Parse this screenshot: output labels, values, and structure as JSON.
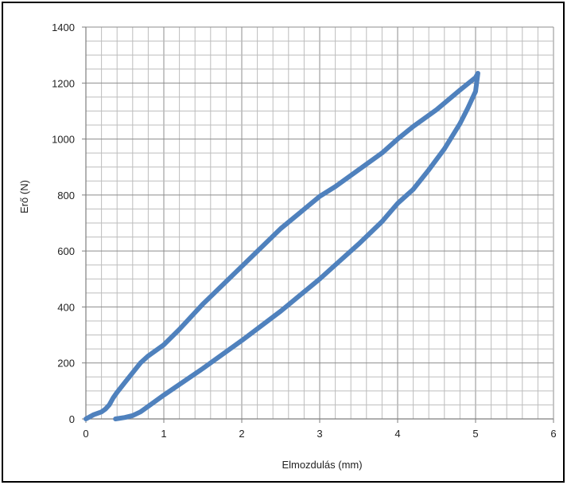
{
  "chart_data": {
    "type": "line",
    "title": "",
    "xlabel": "Elmozdulás (mm)",
    "ylabel": "Erő (N)",
    "xlim": [
      0,
      6
    ],
    "ylim": [
      0,
      1400
    ],
    "x_ticks": [
      0,
      1,
      2,
      3,
      4,
      5,
      6
    ],
    "y_ticks": [
      0,
      200,
      400,
      600,
      800,
      1000,
      1200,
      1400
    ],
    "x_tick_labels": [
      "0",
      "1",
      "2",
      "3",
      "4",
      "5",
      "6"
    ],
    "y_tick_labels": [
      "0",
      "200",
      "400",
      "600",
      "800",
      "1000",
      "1200",
      "1400"
    ],
    "x_minor_step": 0.2,
    "y_minor_step": 50,
    "grid": true,
    "legend": "none",
    "series_color": "#4f81bd",
    "series": [
      {
        "x": [
          0.0,
          0.1,
          0.2,
          0.25,
          0.3,
          0.35,
          0.4,
          0.5,
          0.6,
          0.7,
          0.8,
          1.0,
          1.2,
          1.5,
          2.0,
          2.5,
          3.0,
          3.2,
          3.5,
          3.8,
          4.0,
          4.2,
          4.5,
          4.8,
          5.0,
          5.03,
          5.0,
          4.9,
          4.8,
          4.6,
          4.4,
          4.2,
          4.0,
          3.8,
          3.5,
          3.2,
          3.0,
          2.5,
          2.0,
          1.5,
          1.0,
          0.8,
          0.7,
          0.6,
          0.5,
          0.38
        ],
        "y": [
          0,
          15,
          25,
          35,
          50,
          75,
          95,
          130,
          165,
          200,
          225,
          265,
          320,
          410,
          545,
          680,
          795,
          830,
          890,
          950,
          1000,
          1045,
          1105,
          1175,
          1220,
          1235,
          1170,
          1110,
          1055,
          965,
          890,
          820,
          770,
          705,
          625,
          550,
          500,
          385,
          280,
          180,
          85,
          45,
          25,
          12,
          5,
          0
        ]
      }
    ]
  }
}
